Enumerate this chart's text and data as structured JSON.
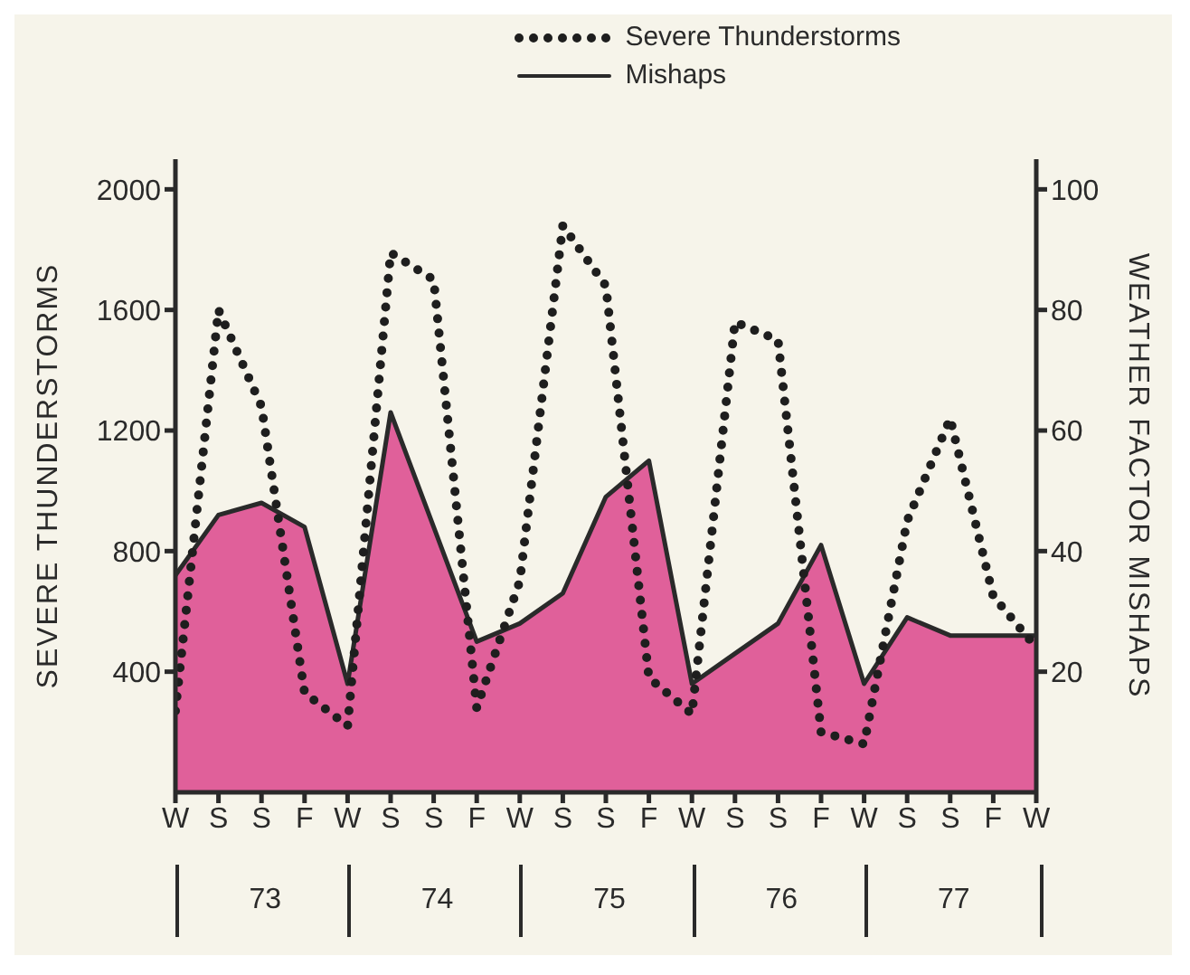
{
  "chart_data": {
    "type": "area",
    "ylabel": "SEVERE THUNDERSTORMS",
    "y2label": "WEATHER FACTOR MISHAPS",
    "categories": [
      "W",
      "S",
      "S",
      "F",
      "W",
      "S",
      "S",
      "F",
      "W",
      "S",
      "S",
      "F",
      "W",
      "S",
      "S",
      "F",
      "W",
      "S",
      "S",
      "F",
      "W"
    ],
    "series": [
      {
        "name": "Severe Thunderstorms",
        "type": "line",
        "line_style": "dotted",
        "color": "#1e1e1e",
        "values": [
          270,
          1600,
          1280,
          330,
          220,
          1790,
          1700,
          280,
          700,
          1880,
          1680,
          380,
          260,
          1560,
          1500,
          200,
          160,
          900,
          1240,
          650,
          480
        ]
      },
      {
        "name": "Mishaps",
        "axis": "y2",
        "color": "#e0609a",
        "values": [
          36,
          46,
          48,
          44,
          18,
          63,
          44,
          25,
          28,
          33,
          49,
          55,
          18,
          23,
          28,
          41,
          18,
          29,
          26,
          26,
          26
        ]
      }
    ],
    "ylim": [
      0,
      2100
    ],
    "yticks": [
      400,
      800,
      1200,
      1600,
      2000
    ],
    "y2lim": [
      0,
      105
    ],
    "y2ticks": [
      20,
      40,
      60,
      80,
      100
    ],
    "annotations": [
      "73",
      "74",
      "75",
      "76",
      "77"
    ],
    "legend": "top right"
  }
}
